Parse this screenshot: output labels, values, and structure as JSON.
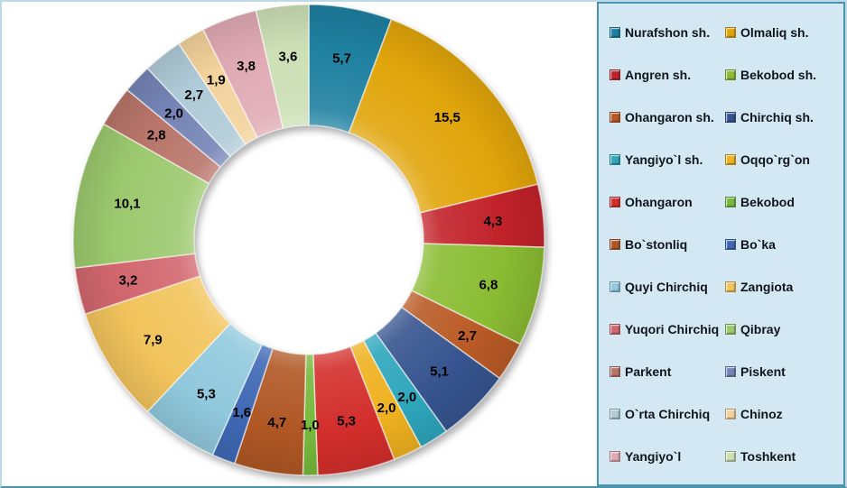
{
  "page": {
    "background": "#ffffff",
    "frame_border_color": "#bdd9e5",
    "frame_bottom_color": "#4a95ad"
  },
  "legend": {
    "background": "#d3e8f2",
    "border_color": "#4a95ad",
    "position": "right",
    "columns": 2
  },
  "chart_data": {
    "type": "pie",
    "subtype": "doughnut",
    "title": "",
    "unit": "%",
    "decimal_separator": ",",
    "total": 100,
    "start_angle_deg": 0,
    "direction": "clockwise",
    "inner_radius_ratio": 0.487,
    "legend_position": "right",
    "grid": false,
    "label_style": "value-on-slice",
    "segments": [
      {
        "label": "Nurafshon sh.",
        "value": 5.7,
        "display": "5,7",
        "color": "#1e80a0"
      },
      {
        "label": "Olmaliq sh.",
        "value": 15.5,
        "display": "15,5",
        "color": "#e1a50b"
      },
      {
        "label": "Angren sh.",
        "value": 4.3,
        "display": "4,3",
        "color": "#c2222a"
      },
      {
        "label": "Bekobod sh.",
        "value": 6.8,
        "display": "6,8",
        "color": "#8abc33"
      },
      {
        "label": "Ohangaron sh.",
        "value": 2.7,
        "display": "2,7",
        "color": "#b95a26"
      },
      {
        "label": "Chirchiq sh.",
        "value": 5.1,
        "display": "5,1",
        "color": "#36548f"
      },
      {
        "label": "Yangiyo`l sh.",
        "value": 2.0,
        "display": "2,0",
        "color": "#2ea6bc"
      },
      {
        "label": "Oqqo`rg`on",
        "value": 2.0,
        "display": "2,0",
        "color": "#eeb120"
      },
      {
        "label": "Ohangaron",
        "value": 5.3,
        "display": "5,3",
        "color": "#d32e2b"
      },
      {
        "label": "Bekobod",
        "value": 1.0,
        "display": "1,0",
        "color": "#76b83c"
      },
      {
        "label": "Bo`stonliq",
        "value": 4.7,
        "display": "4,7",
        "color": "#b05724"
      },
      {
        "label": "Bo`ka",
        "value": 1.6,
        "display": "1,6",
        "color": "#3e68b4"
      },
      {
        "label": "Quyi Chirchiq",
        "value": 5.3,
        "display": "5,3",
        "color": "#90c8dc"
      },
      {
        "label": "Zangiota",
        "value": 7.9,
        "display": "7,9",
        "color": "#f2c45c"
      },
      {
        "label": "Yuqori Chirchiq",
        "value": 3.2,
        "display": "3,2",
        "color": "#d2676e"
      },
      {
        "label": "Qibray",
        "value": 10.1,
        "display": "10,1",
        "color": "#9cc96e"
      },
      {
        "label": "Parkent",
        "value": 2.8,
        "display": "2,8",
        "color": "#b8756a"
      },
      {
        "label": "Piskent",
        "value": 2.0,
        "display": "2,0",
        "color": "#7584b6"
      },
      {
        "label": "O`rta Chirchiq",
        "value": 2.7,
        "display": "2,7",
        "color": "#afcbd7"
      },
      {
        "label": "Chinoz",
        "value": 1.9,
        "display": "1,9",
        "color": "#f3d29b"
      },
      {
        "label": "Yangiyo`l",
        "value": 3.8,
        "display": "3,8",
        "color": "#e0aab3"
      },
      {
        "label": "Toshkent",
        "value": 3.6,
        "display": "3,6",
        "color": "#ccdfb5"
      }
    ]
  }
}
